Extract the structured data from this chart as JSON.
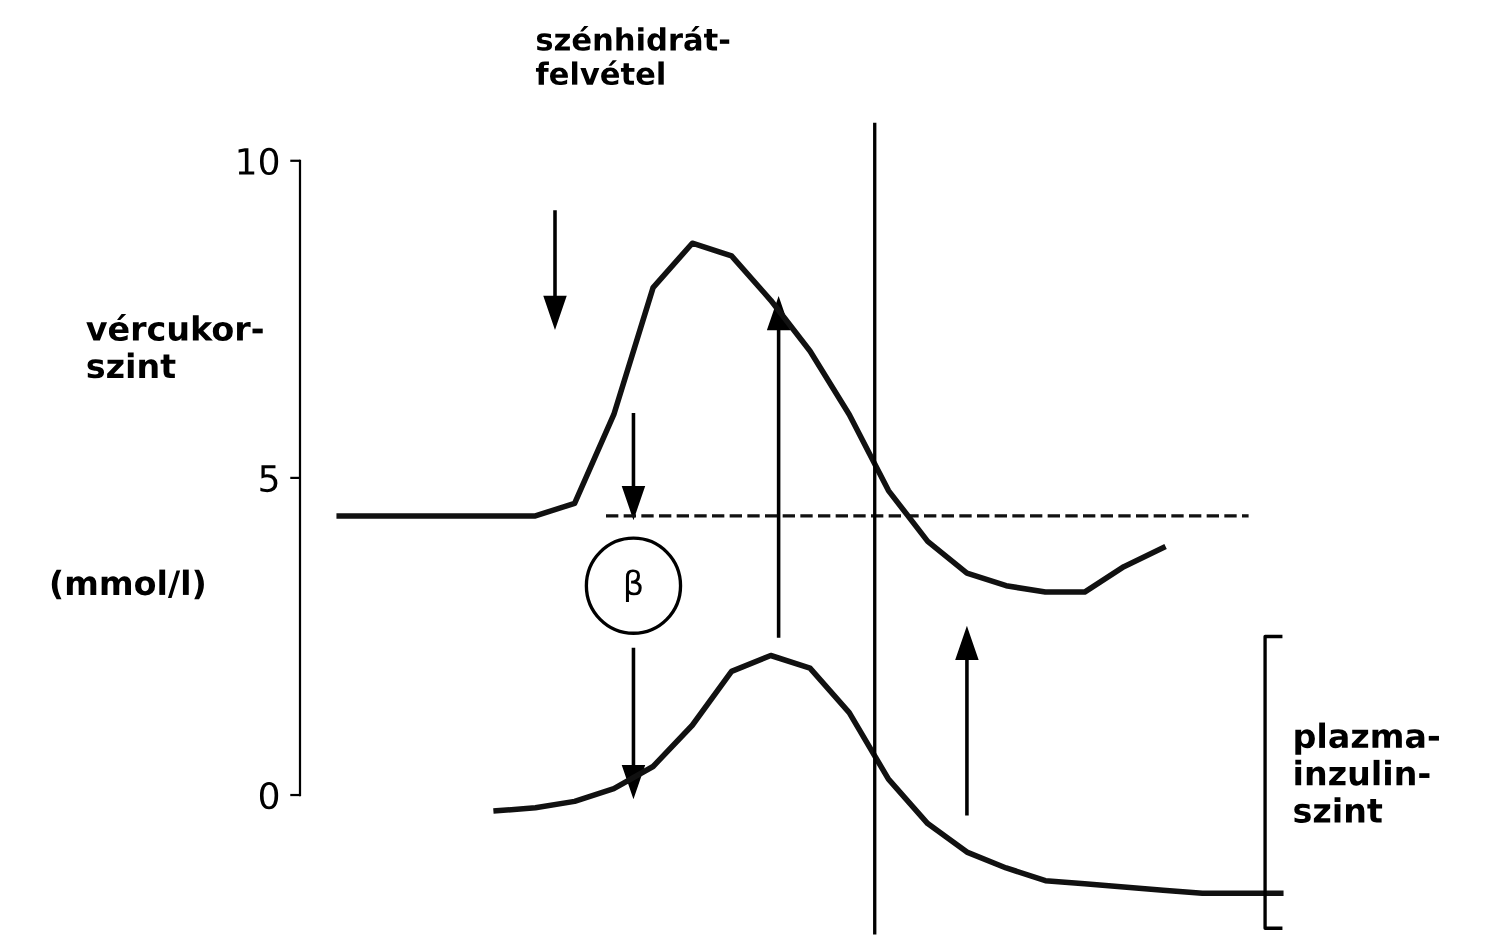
{
  "chart_data": {
    "type": "line",
    "ylabel": "vércukor-\nszint",
    "categories": [
      null,
      null,
      null,
      null,
      null,
      null,
      null,
      null,
      null,
      null,
      null,
      null,
      null,
      null,
      null,
      null,
      null,
      null,
      null,
      null,
      null,
      null,
      null,
      null,
      null
    ],
    "series": [
      {
        "color": "#111111",
        "values": [
          4.4,
          4.4,
          4.4,
          4.4,
          4.4,
          4.4,
          4.6,
          6.0,
          8.0,
          8.7,
          8.5,
          7.8,
          7.0,
          6.0,
          4.8,
          4.0,
          3.5,
          3.3,
          3.2,
          3.2,
          3.6,
          3.9,
          null,
          null,
          null
        ]
      },
      {
        "color": "#111111",
        "values": [
          null,
          null,
          null,
          null,
          -0.25,
          -0.2,
          -0.1,
          0.1,
          0.45,
          1.1,
          1.95,
          2.2,
          2.0,
          1.3,
          0.25,
          -0.45,
          -0.9,
          -1.15,
          -1.35,
          -1.4,
          -1.45,
          -1.5,
          -1.55,
          -1.55,
          -1.55
        ]
      }
    ],
    "ylim": [
      -2.2,
      10.6
    ],
    "yticks": [
      0,
      5,
      10
    ],
    "tick_labels": "y",
    "grid": false,
    "marker": "none",
    "line_style": "solid",
    "ref_lines": [
      {
        "axis": "y",
        "value": 4.4,
        "line_style": "dashed",
        "color": "#111111"
      }
    ],
    "annotations": [
      "szénhidrát-\nfelvétel",
      "(mmol/l)",
      "β",
      "plazma-\ninzulin-\nszint"
    ]
  }
}
